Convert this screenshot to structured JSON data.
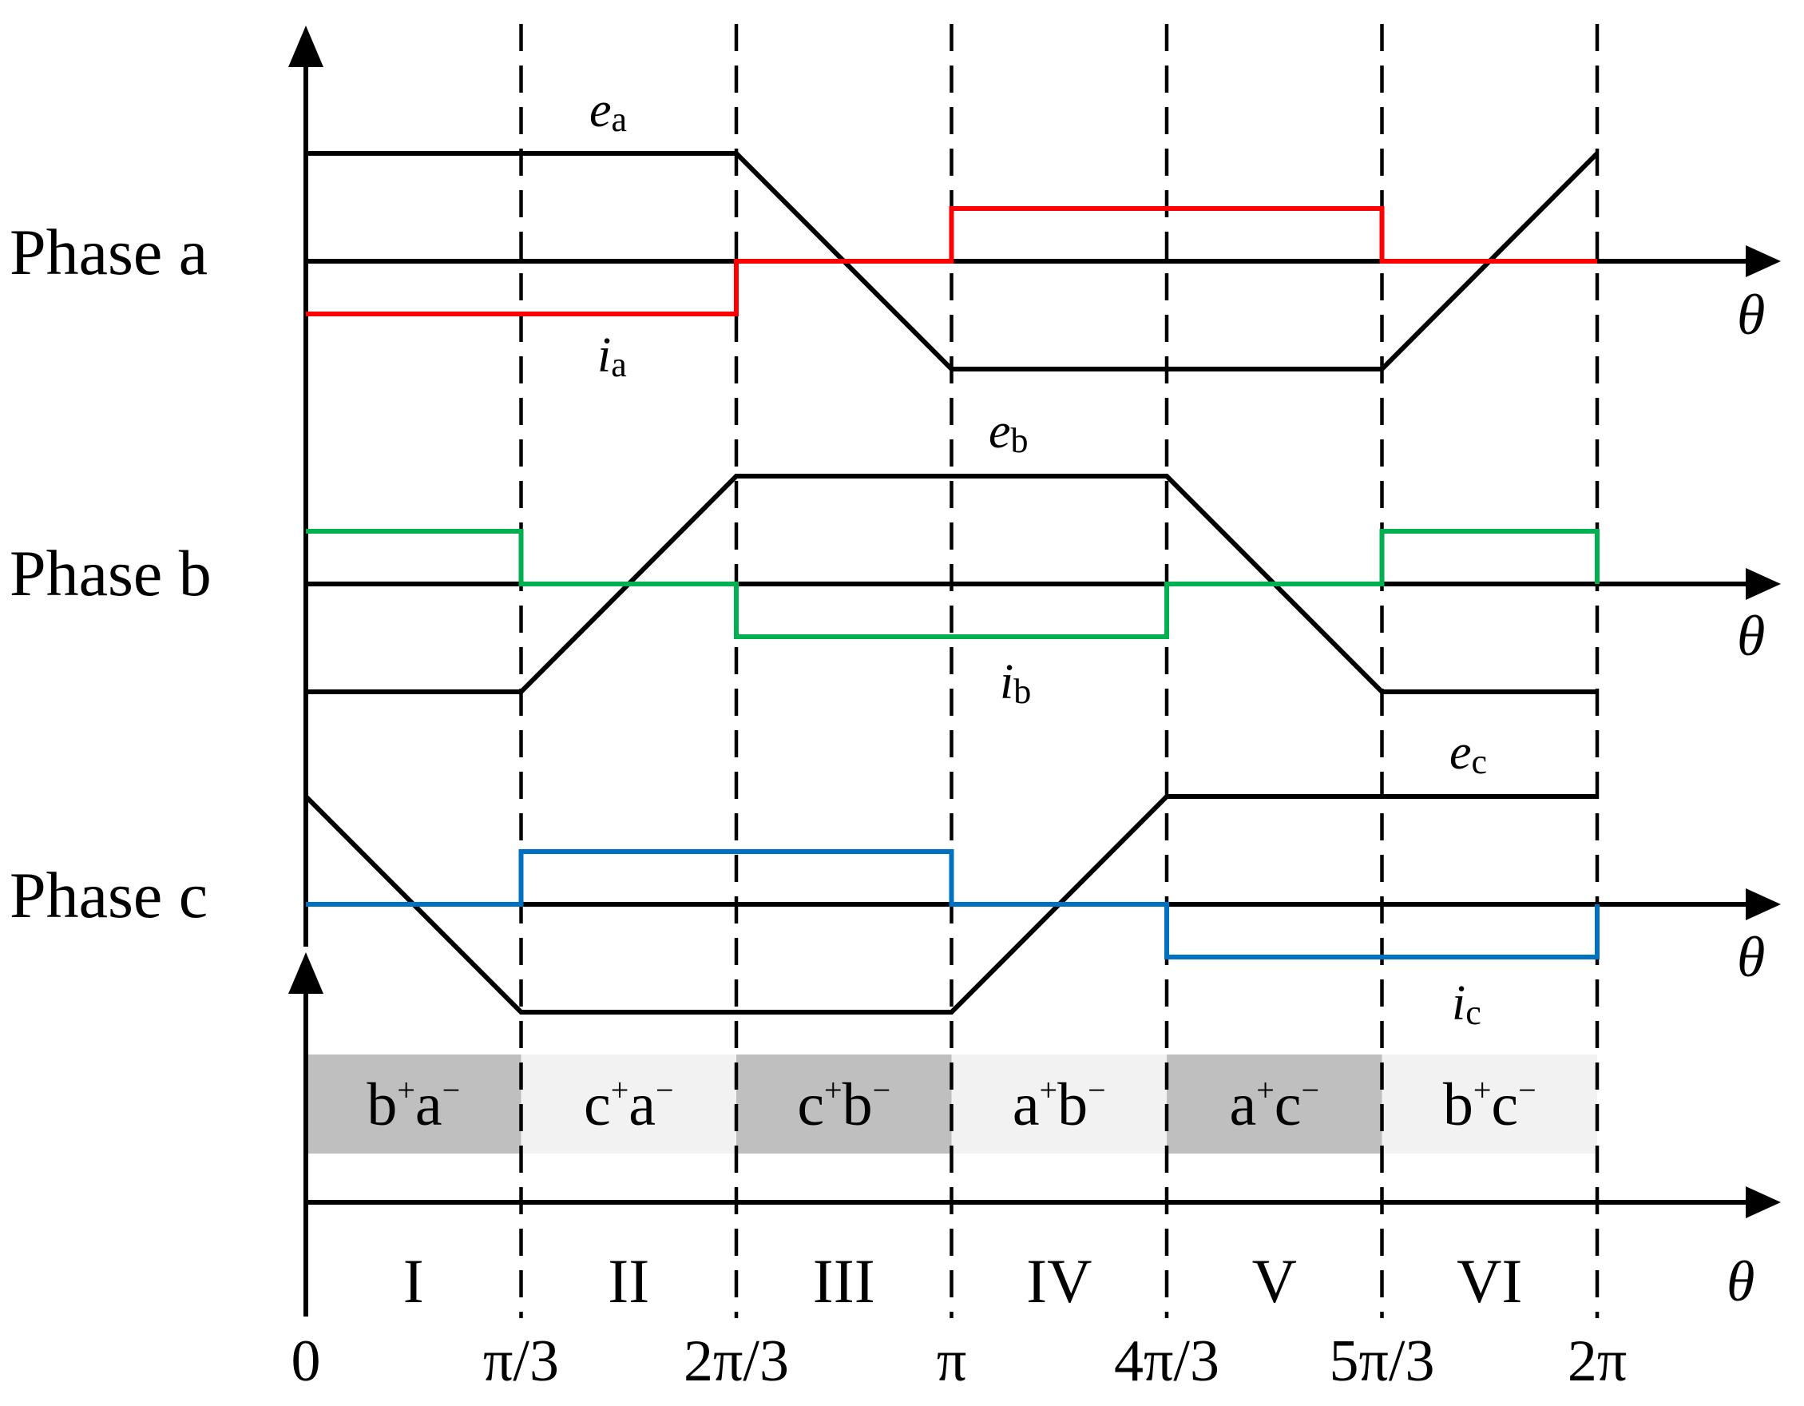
{
  "chart_data": {
    "type": "line",
    "x_axis": {
      "symbol": "θ",
      "range": [
        0,
        6.2832
      ],
      "ticks": [
        {
          "value": 0,
          "label": "0"
        },
        {
          "value": 1.0472,
          "label": "π/3"
        },
        {
          "value": 2.0944,
          "label": "2π/3"
        },
        {
          "value": 3.1416,
          "label": "π"
        },
        {
          "value": 4.1888,
          "label": "4π/3"
        },
        {
          "value": 5.236,
          "label": "5π/3"
        },
        {
          "value": 6.2832,
          "label": "2π"
        }
      ]
    },
    "panels": [
      {
        "label": "Phase a",
        "emf": {
          "name": "e",
          "subscript": "a",
          "color": "#000000",
          "points": [
            [
              0,
              1
            ],
            [
              2.0944,
              1
            ],
            [
              3.1416,
              -1
            ],
            [
              5.236,
              -1
            ],
            [
              6.2832,
              1
            ]
          ]
        },
        "current": {
          "name": "i",
          "subscript": "a",
          "color": "#ff0000",
          "points": [
            [
              0,
              -1
            ],
            [
              2.0944,
              -1
            ],
            [
              2.0944,
              0
            ],
            [
              3.1416,
              0
            ],
            [
              3.1416,
              1
            ],
            [
              5.236,
              1
            ],
            [
              5.236,
              0
            ],
            [
              6.2832,
              0
            ]
          ]
        }
      },
      {
        "label": "Phase b",
        "emf": {
          "name": "e",
          "subscript": "b",
          "color": "#000000",
          "points": [
            [
              0,
              -1
            ],
            [
              1.0472,
              -1
            ],
            [
              2.0944,
              1
            ],
            [
              4.1888,
              1
            ],
            [
              5.236,
              -1
            ],
            [
              6.2832,
              -1
            ]
          ]
        },
        "current": {
          "name": "i",
          "subscript": "b",
          "color": "#00b050",
          "points": [
            [
              0,
              1
            ],
            [
              1.0472,
              1
            ],
            [
              1.0472,
              0
            ],
            [
              2.0944,
              0
            ],
            [
              2.0944,
              -1
            ],
            [
              4.1888,
              -1
            ],
            [
              4.1888,
              0
            ],
            [
              5.236,
              0
            ],
            [
              5.236,
              1
            ],
            [
              6.2832,
              1
            ],
            [
              6.2832,
              0
            ]
          ]
        }
      },
      {
        "label": "Phase c",
        "emf": {
          "name": "e",
          "subscript": "c",
          "color": "#000000",
          "points": [
            [
              0,
              1
            ],
            [
              1.0472,
              -1
            ],
            [
              3.1416,
              -1
            ],
            [
              4.1888,
              1
            ],
            [
              6.2832,
              1
            ]
          ]
        },
        "current": {
          "name": "i",
          "subscript": "c",
          "color": "#0070c0",
          "points": [
            [
              0,
              0
            ],
            [
              1.0472,
              0
            ],
            [
              1.0472,
              1
            ],
            [
              3.1416,
              1
            ],
            [
              3.1416,
              0
            ],
            [
              4.1888,
              0
            ],
            [
              4.1888,
              -1
            ],
            [
              6.2832,
              -1
            ],
            [
              6.2832,
              0
            ]
          ]
        }
      }
    ],
    "sectors": [
      "I",
      "II",
      "III",
      "IV",
      "V",
      "VI"
    ],
    "conduction": [
      {
        "main": "b",
        "main_sup": "+",
        "second": "a",
        "second_sup": "−",
        "shade": "#bfbfbf"
      },
      {
        "main": "c",
        "main_sup": "+",
        "second": "a",
        "second_sup": "−",
        "shade": "#f2f2f2"
      },
      {
        "main": "c",
        "main_sup": "+",
        "second": "b",
        "second_sup": "−",
        "shade": "#bfbfbf"
      },
      {
        "main": "a",
        "main_sup": "+",
        "second": "b",
        "second_sup": "−",
        "shade": "#f2f2f2"
      },
      {
        "main": "a",
        "main_sup": "+",
        "second": "c",
        "second_sup": "−",
        "shade": "#bfbfbf"
      },
      {
        "main": "b",
        "main_sup": "+",
        "second": "c",
        "second_sup": "−",
        "shade": "#f2f2f2"
      }
    ]
  }
}
